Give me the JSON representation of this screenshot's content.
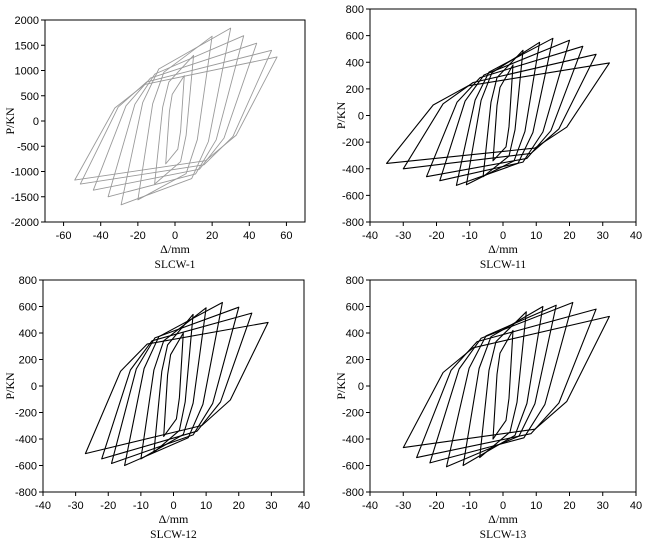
{
  "chart_data": [
    {
      "type": "line",
      "title": "SLCW-1",
      "xlabel": "Δ/mm",
      "ylabel": "P/KN",
      "xlim": [
        -70,
        70
      ],
      "ylim": [
        -2000,
        2000
      ],
      "xticks": [
        -60,
        -40,
        -20,
        0,
        20,
        40,
        60
      ],
      "yticks": [
        2000,
        1500,
        1000,
        500,
        0,
        -500,
        -1000,
        -1500,
        -2000
      ],
      "grid": false,
      "line_color": "#9a9a9a",
      "loops": [
        [
          [
            5,
            900
          ],
          [
            3,
            -198
          ],
          [
            1.5,
            -558
          ],
          [
            -5,
            -850
          ],
          [
            -3,
            187
          ],
          [
            -1.5,
            527
          ]
        ],
        [
          [
            10,
            1300
          ],
          [
            6,
            -286
          ],
          [
            3,
            -806
          ],
          [
            -11,
            -1250
          ],
          [
            -6.6,
            275
          ],
          [
            -3.3,
            775
          ]
        ],
        [
          [
            20,
            1680
          ],
          [
            12,
            -370
          ],
          [
            6,
            -1042
          ],
          [
            -20,
            -1560
          ],
          [
            -12,
            343
          ],
          [
            -6,
            967
          ]
        ],
        [
          [
            30,
            1840
          ],
          [
            18,
            -405
          ],
          [
            9,
            -1141
          ],
          [
            -29,
            -1660
          ],
          [
            -17.4,
            365
          ],
          [
            -8.7,
            1029
          ]
        ],
        [
          [
            37,
            1690
          ],
          [
            22.2,
            -372
          ],
          [
            11.1,
            -1048
          ],
          [
            -36,
            -1500
          ],
          [
            -21.6,
            330
          ],
          [
            -10.8,
            930
          ]
        ],
        [
          [
            44,
            1540
          ],
          [
            26.4,
            -339
          ],
          [
            13.2,
            -955
          ],
          [
            -44,
            -1370
          ],
          [
            -26.4,
            301
          ],
          [
            -13.2,
            849
          ]
        ],
        [
          [
            52,
            1400
          ],
          [
            31.2,
            -308
          ],
          [
            15.6,
            -868
          ],
          [
            -51,
            -1250
          ],
          [
            -30.6,
            275
          ],
          [
            -15.3,
            775
          ]
        ],
        [
          [
            55,
            1270
          ],
          [
            33,
            -279
          ],
          [
            16.5,
            -787
          ],
          [
            -54,
            -1170
          ],
          [
            -32.4,
            257
          ],
          [
            -16.2,
            725
          ]
        ]
      ]
    },
    {
      "type": "line",
      "title": "SLCW-11",
      "xlabel": "Δ/mm",
      "ylabel": "P/KN",
      "xlim": [
        -40,
        40
      ],
      "ylim": [
        -800,
        800
      ],
      "xticks": [
        -40,
        -30,
        -20,
        -10,
        0,
        10,
        20,
        30,
        40
      ],
      "yticks": [
        800,
        600,
        400,
        200,
        0,
        -200,
        -400,
        -600,
        -800
      ],
      "grid": false,
      "line_color": "#000000",
      "loops": [
        [
          [
            3,
            380
          ],
          [
            1.8,
            -84
          ],
          [
            0.9,
            -236
          ],
          [
            -3,
            -340
          ],
          [
            -1.8,
            75
          ],
          [
            -0.9,
            211
          ]
        ],
        [
          [
            6,
            490
          ],
          [
            3.6,
            -108
          ],
          [
            1.8,
            -304
          ],
          [
            -6,
            -460
          ],
          [
            -3.6,
            101
          ],
          [
            -1.8,
            285
          ]
        ],
        [
          [
            11,
            550
          ],
          [
            6.6,
            -121
          ],
          [
            3.3,
            -341
          ],
          [
            -11,
            -520
          ],
          [
            -6.6,
            114
          ],
          [
            -3.3,
            322
          ]
        ],
        [
          [
            15,
            580
          ],
          [
            9,
            -128
          ],
          [
            4.5,
            -360
          ],
          [
            -14,
            -525
          ],
          [
            -8.4,
            116
          ],
          [
            -4.2,
            326
          ]
        ],
        [
          [
            20,
            565
          ],
          [
            12,
            -124
          ],
          [
            6,
            -350
          ],
          [
            -19,
            -490
          ],
          [
            -11.4,
            108
          ],
          [
            -5.7,
            304
          ]
        ],
        [
          [
            24,
            520
          ],
          [
            14.4,
            -114
          ],
          [
            7.2,
            -322
          ],
          [
            -23,
            -460
          ],
          [
            -13.8,
            101
          ],
          [
            -6.9,
            285
          ]
        ],
        [
          [
            28,
            460
          ],
          [
            16.8,
            -101
          ],
          [
            8.4,
            -285
          ],
          [
            -30,
            -400
          ],
          [
            -18,
            88
          ],
          [
            -9,
            248
          ]
        ],
        [
          [
            32,
            395
          ],
          [
            19.2,
            -87
          ],
          [
            9.6,
            -245
          ],
          [
            -35,
            -360
          ],
          [
            -21,
            79
          ],
          [
            -10.5,
            223
          ]
        ]
      ]
    },
    {
      "type": "line",
      "title": "SLCW-12",
      "xlabel": "Δ/mm",
      "ylabel": "P/KN",
      "xlim": [
        -40,
        40
      ],
      "ylim": [
        -800,
        800
      ],
      "xticks": [
        -40,
        -30,
        -20,
        -10,
        0,
        10,
        20,
        30,
        40
      ],
      "yticks": [
        800,
        600,
        400,
        200,
        0,
        -200,
        -400,
        -600,
        -800
      ],
      "grid": false,
      "line_color": "#000000",
      "loops": [
        [
          [
            3,
            400
          ],
          [
            1.8,
            -88
          ],
          [
            0.9,
            -248
          ],
          [
            -3,
            -380
          ],
          [
            -1.8,
            84
          ],
          [
            -0.9,
            236
          ]
        ],
        [
          [
            6,
            540
          ],
          [
            3.6,
            -119
          ],
          [
            1.8,
            -335
          ],
          [
            -6,
            -500
          ],
          [
            -3.6,
            110
          ],
          [
            -1.8,
            310
          ]
        ],
        [
          [
            10,
            590
          ],
          [
            6,
            -130
          ],
          [
            3,
            -366
          ],
          [
            -10,
            -550
          ],
          [
            -6,
            121
          ],
          [
            -3,
            341
          ]
        ],
        [
          [
            15,
            630
          ],
          [
            9,
            -139
          ],
          [
            4.5,
            -391
          ],
          [
            -15,
            -600
          ],
          [
            -9,
            132
          ],
          [
            -4.5,
            372
          ]
        ],
        [
          [
            20,
            595
          ],
          [
            12,
            -131
          ],
          [
            6,
            -369
          ],
          [
            -19,
            -585
          ],
          [
            -11.4,
            129
          ],
          [
            -5.7,
            363
          ]
        ],
        [
          [
            24,
            550
          ],
          [
            14.4,
            -121
          ],
          [
            7.2,
            -341
          ],
          [
            -22,
            -550
          ],
          [
            -13.2,
            121
          ],
          [
            -6.6,
            341
          ]
        ],
        [
          [
            29,
            480
          ],
          [
            17.4,
            -106
          ],
          [
            8.7,
            -298
          ],
          [
            -27,
            -510
          ],
          [
            -16.2,
            112
          ],
          [
            -8.1,
            316
          ]
        ]
      ]
    },
    {
      "type": "line",
      "title": "SLCW-13",
      "xlabel": "Δ/mm",
      "ylabel": "P/KN",
      "xlim": [
        -40,
        40
      ],
      "ylim": [
        -800,
        800
      ],
      "xticks": [
        -40,
        -30,
        -20,
        -10,
        0,
        10,
        20,
        30,
        40
      ],
      "yticks": [
        800,
        600,
        400,
        200,
        0,
        -200,
        -400,
        -600,
        -800
      ],
      "grid": false,
      "line_color": "#000000",
      "loops": [
        [
          [
            3,
            420
          ],
          [
            1.8,
            -92
          ],
          [
            0.9,
            -260
          ],
          [
            -3,
            -400
          ],
          [
            -1.8,
            88
          ],
          [
            -0.9,
            248
          ]
        ],
        [
          [
            7,
            560
          ],
          [
            4.2,
            -123
          ],
          [
            2.1,
            -347
          ],
          [
            -7,
            -540
          ],
          [
            -4.2,
            119
          ],
          [
            -2.1,
            335
          ]
        ],
        [
          [
            12,
            600
          ],
          [
            7.2,
            -132
          ],
          [
            3.6,
            -372
          ],
          [
            -12,
            -600
          ],
          [
            -7.2,
            132
          ],
          [
            -3.6,
            372
          ]
        ],
        [
          [
            16,
            610
          ],
          [
            9.6,
            -134
          ],
          [
            4.8,
            -378
          ],
          [
            -17,
            -610
          ],
          [
            -10.2,
            134
          ],
          [
            -5.1,
            378
          ]
        ],
        [
          [
            21,
            630
          ],
          [
            12.6,
            -139
          ],
          [
            6.3,
            -391
          ],
          [
            -22,
            -580
          ],
          [
            -13.2,
            128
          ],
          [
            -6.6,
            360
          ]
        ],
        [
          [
            28,
            580
          ],
          [
            16.8,
            -128
          ],
          [
            8.4,
            -360
          ],
          [
            -26,
            -540
          ],
          [
            -15.6,
            119
          ],
          [
            -7.8,
            335
          ]
        ],
        [
          [
            32,
            525
          ],
          [
            19.2,
            -116
          ],
          [
            9.6,
            -326
          ],
          [
            -30,
            -465
          ],
          [
            -18,
            102
          ],
          [
            -9,
            288
          ]
        ]
      ]
    }
  ]
}
